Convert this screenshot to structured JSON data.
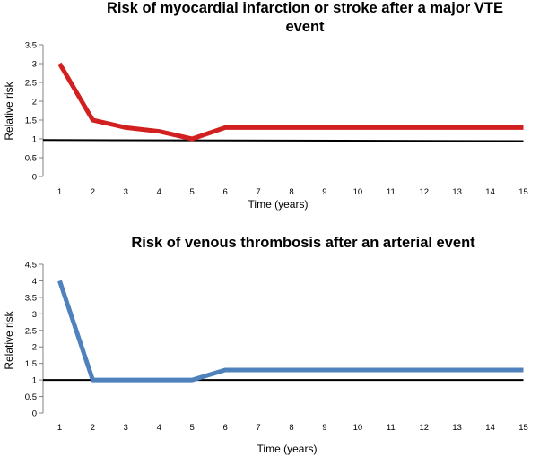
{
  "chart_data": [
    {
      "type": "line",
      "title_lines": [
        "Risk of myocardial infarction or stroke after a major VTE",
        "event"
      ],
      "xlabel": "Time (years)",
      "ylabel": "Relative risk",
      "x": [
        1,
        2,
        3,
        4,
        5,
        6,
        7,
        8,
        9,
        10,
        11,
        12,
        13,
        14,
        15
      ],
      "x_tick_labels": [
        "1",
        "2",
        "3",
        "4",
        "5",
        "6",
        "7",
        "8",
        "9",
        "10",
        "11",
        "12",
        "13",
        "14",
        "15"
      ],
      "y_tick_labels": [
        "0",
        "0.5",
        "1",
        "1.5",
        "2",
        "2.5",
        "3",
        "3.5"
      ],
      "ylim": [
        0,
        3.5
      ],
      "series": [
        {
          "name": "Relative risk",
          "color": "#d21f1f",
          "values": [
            3.0,
            1.5,
            1.3,
            1.2,
            1.0,
            1.3,
            1.3,
            1.3,
            1.3,
            1.3,
            1.3,
            1.3,
            1.3,
            1.3,
            1.3
          ]
        }
      ],
      "reference_line": {
        "start": 0.97,
        "end": 0.94,
        "color": "#000000"
      }
    },
    {
      "type": "line",
      "title_lines": [
        "Risk of venous thrombosis after an arterial event"
      ],
      "xlabel": "Time (years)",
      "ylabel": "Relative risk",
      "x": [
        1,
        2,
        3,
        4,
        5,
        6,
        7,
        8,
        9,
        10,
        11,
        12,
        13,
        14,
        15
      ],
      "x_tick_labels": [
        "1",
        "2",
        "3",
        "4",
        "5",
        "6",
        "7",
        "8",
        "9",
        "10",
        "11",
        "12",
        "13",
        "14",
        "15"
      ],
      "y_tick_labels": [
        "0",
        "0.5",
        "1",
        "1.5",
        "2",
        "2.5",
        "3",
        "3.5",
        "4",
        "4.5"
      ],
      "ylim": [
        0,
        4.5
      ],
      "series": [
        {
          "name": "Relative risk",
          "color": "#4f81bd",
          "values": [
            4.0,
            1.0,
            1.0,
            1.0,
            1.0,
            1.3,
            1.3,
            1.3,
            1.3,
            1.3,
            1.3,
            1.3,
            1.3,
            1.3,
            1.3
          ]
        }
      ],
      "reference_line": {
        "start": 1.0,
        "end": 1.0,
        "color": "#000000"
      }
    }
  ]
}
